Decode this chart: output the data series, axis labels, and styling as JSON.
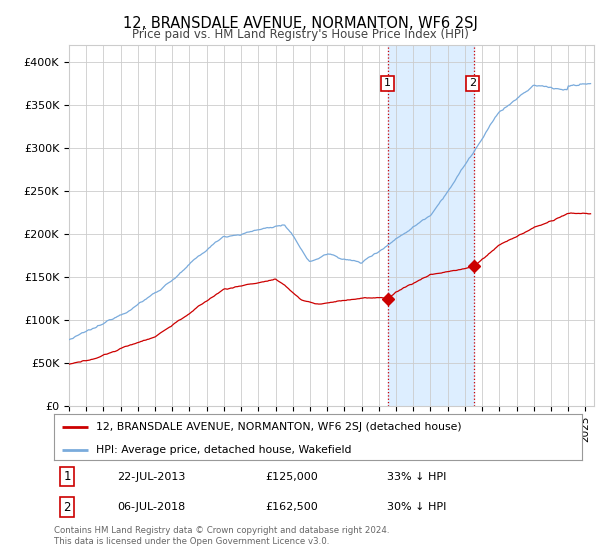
{
  "title": "12, BRANSDALE AVENUE, NORMANTON, WF6 2SJ",
  "subtitle": "Price paid vs. HM Land Registry's House Price Index (HPI)",
  "ylim": [
    0,
    420000
  ],
  "yticks": [
    0,
    50000,
    100000,
    150000,
    200000,
    250000,
    300000,
    350000,
    400000
  ],
  "ytick_labels": [
    "£0",
    "£50K",
    "£100K",
    "£150K",
    "£200K",
    "£250K",
    "£300K",
    "£350K",
    "£400K"
  ],
  "xlim_start": 1995.0,
  "xlim_end": 2025.5,
  "sale1_x": 2013.55,
  "sale1_y": 125000,
  "sale2_x": 2018.51,
  "sale2_y": 162500,
  "sale1_date": "22-JUL-2013",
  "sale1_price": "£125,000",
  "sale1_hpi": "33% ↓ HPI",
  "sale2_date": "06-JUL-2018",
  "sale2_price": "£162,500",
  "sale2_hpi": "30% ↓ HPI",
  "legend_line1": "12, BRANSDALE AVENUE, NORMANTON, WF6 2SJ (detached house)",
  "legend_line2": "HPI: Average price, detached house, Wakefield",
  "footer": "Contains HM Land Registry data © Crown copyright and database right 2024.\nThis data is licensed under the Open Government Licence v3.0.",
  "line_color_red": "#cc0000",
  "line_color_blue": "#7aabdc",
  "shade_color": "#ddeeff",
  "grid_color": "#cccccc",
  "background_color": "#ffffff"
}
